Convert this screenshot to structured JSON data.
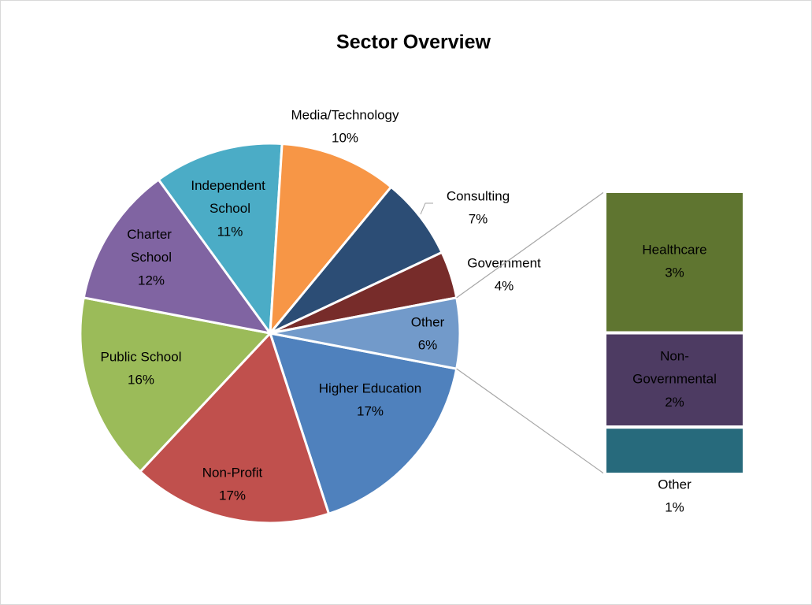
{
  "chart_data": {
    "type": "pie",
    "title": "Sector Overview",
    "categories": [
      "Higher Education",
      "Non-Profit",
      "Public School",
      "Charter School",
      "Independent School",
      "Media/Technology",
      "Consulting",
      "Government",
      "Other"
    ],
    "values": [
      17,
      17,
      16,
      12,
      11,
      10,
      7,
      4,
      6
    ],
    "value_labels": [
      "17%",
      "17%",
      "16%",
      "12%",
      "11%",
      "10%",
      "7%",
      "4%",
      "6%"
    ],
    "colors": [
      "#4f81bd",
      "#c0504d",
      "#9bbb59",
      "#8064a2",
      "#4bacc6",
      "#f79646",
      "#2c4d75",
      "#772c2a",
      "#729aca"
    ],
    "breakdown": {
      "categories": [
        "Healthcare",
        "Non-Governmental",
        "Other"
      ],
      "values": [
        3,
        2,
        1
      ],
      "value_labels": [
        "3%",
        "2%",
        "1%"
      ],
      "colors": [
        "#5f7530",
        "#4d3b62",
        "#276a7c"
      ]
    }
  }
}
